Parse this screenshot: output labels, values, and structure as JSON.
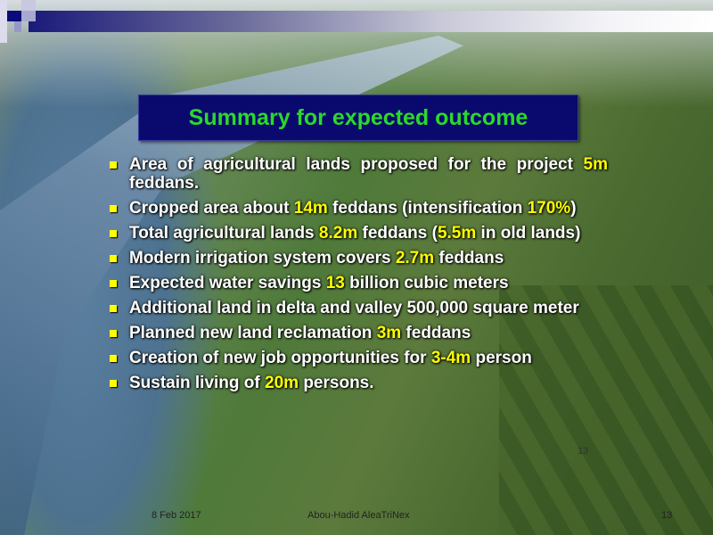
{
  "title": "Summary for expected outcome",
  "bullets": [
    {
      "parts": [
        "Area of agricultural lands proposed for the project ",
        "5m",
        " feddans."
      ]
    },
    {
      "parts": [
        "Cropped area about ",
        "14m",
        " feddans (intensification ",
        "170%",
        ")"
      ]
    },
    {
      "parts": [
        "Total agricultural lands ",
        "8.2m",
        " feddans (",
        "5.5m",
        " in old lands)"
      ]
    },
    {
      "parts": [
        "Modern irrigation system covers ",
        "2.7m",
        " feddans"
      ]
    },
    {
      "parts": [
        "Expected water savings ",
        "13",
        " billion cubic meters"
      ]
    },
    {
      "parts": [
        "Additional land in delta and valley 500,000 square meter"
      ]
    },
    {
      "parts": [
        "Planned new land reclamation ",
        "3m",
        " feddans"
      ]
    },
    {
      "parts": [
        "Creation of new job opportunities for ",
        "3-4m",
        " person"
      ]
    },
    {
      "parts": [
        "Sustain living of ",
        "20m",
        " persons."
      ]
    }
  ],
  "slide_number_inline": "13",
  "footer": {
    "date": "8 Feb 2017",
    "author": "Abou-Hadid  AleaTriNex",
    "page": "13"
  },
  "colors": {
    "title": "#2bd92b",
    "title_bg": "#0a0a6e",
    "highlight": "#ffff00",
    "bullet": "#ffff00"
  }
}
